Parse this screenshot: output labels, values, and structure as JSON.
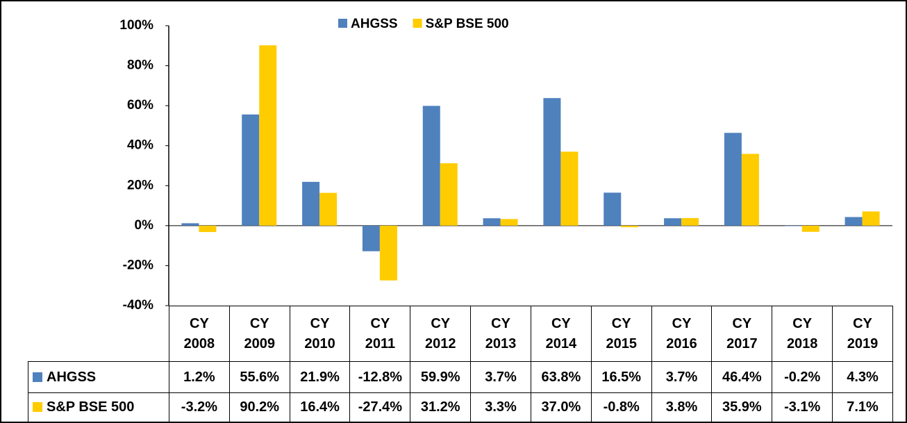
{
  "chart_data": {
    "type": "bar",
    "categories": [
      "CY 2008",
      "CY 2009",
      "CY 2010",
      "CY 2011",
      "CY 2012",
      "CY 2013",
      "CY 2014",
      "CY 2015",
      "CY 2016",
      "CY 2017",
      "CY 2018",
      "CY 2019"
    ],
    "series": [
      {
        "name": "AHGSS",
        "color": "#4f81bd",
        "values": [
          1.2,
          55.6,
          21.9,
          -12.8,
          59.9,
          3.7,
          63.8,
          16.5,
          3.7,
          46.4,
          -0.2,
          4.3
        ],
        "value_labels": [
          "1.2%",
          "55.6%",
          "21.9%",
          "-12.8%",
          "59.9%",
          "3.7%",
          "63.8%",
          "16.5%",
          "3.7%",
          "46.4%",
          "-0.2%",
          "4.3%"
        ]
      },
      {
        "name": "S&P BSE 500",
        "color": "#ffcc00",
        "values": [
          -3.2,
          90.2,
          16.4,
          -27.4,
          31.2,
          3.3,
          37.0,
          -0.8,
          3.8,
          35.9,
          -3.1,
          7.1
        ],
        "value_labels": [
          "-3.2%",
          "90.2%",
          "16.4%",
          "-27.4%",
          "31.2%",
          "3.3%",
          "37.0%",
          "-0.8%",
          "3.8%",
          "35.9%",
          "-3.1%",
          "7.1%"
        ]
      }
    ],
    "ylim": [
      -40,
      100
    ],
    "yticks": [
      {
        "value": -40,
        "label": "-40%"
      },
      {
        "value": -20,
        "label": "-20%"
      },
      {
        "value": 0,
        "label": "0%"
      },
      {
        "value": 20,
        "label": "20%"
      },
      {
        "value": 40,
        "label": "40%"
      },
      {
        "value": 60,
        "label": "60%"
      },
      {
        "value": 80,
        "label": "80%"
      },
      {
        "value": 100,
        "label": "100%"
      }
    ],
    "legend": "top",
    "grid": false
  }
}
